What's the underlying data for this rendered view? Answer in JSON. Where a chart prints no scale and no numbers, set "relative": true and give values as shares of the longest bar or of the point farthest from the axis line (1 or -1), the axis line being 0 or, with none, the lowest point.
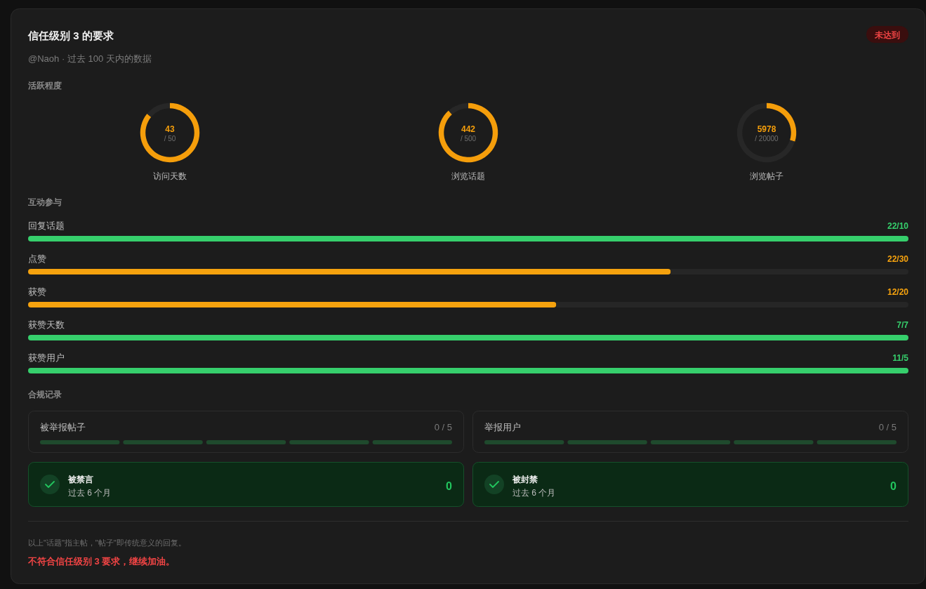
{
  "chart_data": [
    {
      "type": "other",
      "title": "信任级别 3 的要求",
      "subtitle": "@Naoh · 过去 100 天内的数据",
      "annotations": [
        "未达到"
      ]
    },
    {
      "type": "other",
      "title": "活跃程度"
    },
    {
      "type": "donut",
      "title": "访问天数",
      "categories": [
        null,
        null
      ],
      "values": [
        43,
        7
      ],
      "colors": [
        "#f59e0b",
        "#272727"
      ],
      "value_labels": [
        "43",
        null
      ],
      "annotations": [
        "/ 50"
      ]
    },
    {
      "type": "donut",
      "title": "浏览话题",
      "categories": [
        null,
        null
      ],
      "values": [
        442,
        58
      ],
      "colors": [
        "#f59e0b",
        "#272727"
      ],
      "value_labels": [
        "442",
        null
      ],
      "annotations": [
        "/ 500"
      ]
    },
    {
      "type": "donut",
      "title": "浏览帖子",
      "categories": [
        null,
        null
      ],
      "values": [
        5978,
        14022
      ],
      "colors": [
        "#f59e0b",
        "#272727"
      ],
      "value_labels": [
        "5978",
        null
      ],
      "annotations": [
        "/ 20000"
      ]
    },
    {
      "type": "bar",
      "orientation": "horizontal",
      "stacked": true,
      "relative": true,
      "title": "互动参与",
      "categories": [
        "回复话题",
        "点赞",
        "获赞",
        "获赞天数",
        "获赞用户"
      ],
      "series": [
        {
          "colors": [
            "#36cf6c",
            "#f5a20e",
            "#f5a20e",
            "#36cf6c",
            "#36cf6c"
          ],
          "values": [
            1,
            0.73,
            0.6,
            1,
            1
          ]
        },
        {
          "color": "#262626",
          "values": [
            0,
            0.27,
            0.4,
            0,
            0
          ]
        }
      ],
      "annotations": [
        "22/10",
        "22/30",
        "12/20",
        "7/7",
        "11/5"
      ]
    },
    {
      "type": "other",
      "title": "合规记录"
    },
    {
      "type": "other",
      "title": "被举报帖子",
      "categories": [
        null,
        null,
        null,
        null,
        null
      ],
      "annotations": [
        "0 / 5"
      ]
    },
    {
      "type": "other",
      "title": "举报用户",
      "categories": [
        null,
        null,
        null,
        null,
        null
      ],
      "annotations": [
        "0 / 5"
      ]
    },
    {
      "type": "other",
      "title": "被禁言",
      "subtitle": "过去 6 个月",
      "annotations": [
        "0"
      ]
    },
    {
      "type": "other",
      "title": "被封禁",
      "subtitle": "过去 6 个月",
      "annotations": [
        "0"
      ]
    },
    {
      "type": "other",
      "annotations": [
        "以上\"话题\"指主帖，\"帖子\"即传统意义的回复。",
        "不符合信任级别 3 要求，继续加油。"
      ]
    }
  ]
}
